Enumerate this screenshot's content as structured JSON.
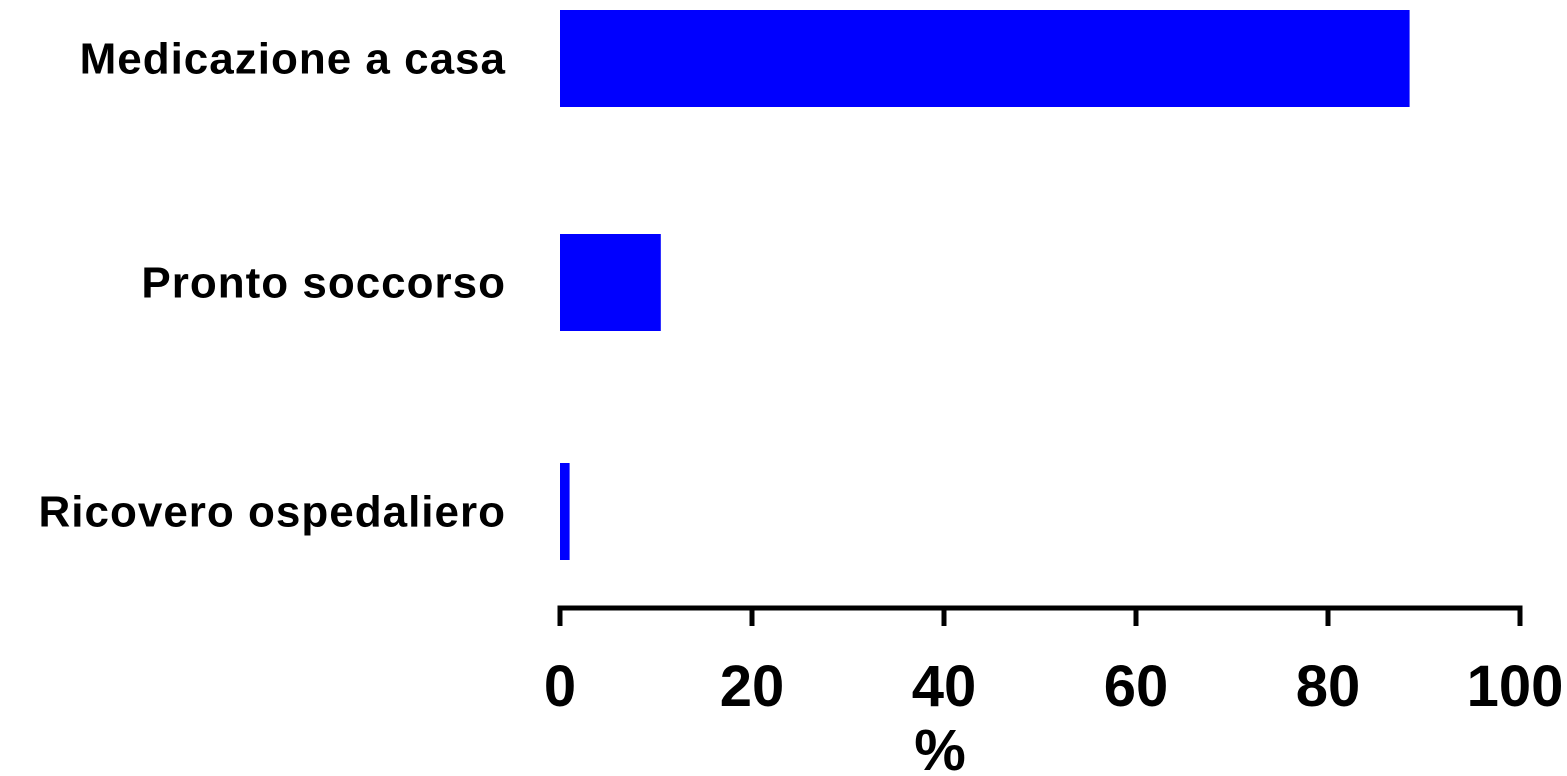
{
  "chart_data": {
    "type": "bar",
    "orientation": "horizontal",
    "categories": [
      "Medicazione a casa",
      "Pronto soccorso",
      "Ricovero ospedaliero"
    ],
    "values": [
      88.5,
      10.5,
      1.0
    ],
    "xlabel": "%",
    "xlim": [
      0,
      100
    ],
    "xticks": [
      0,
      20,
      40,
      60,
      80,
      100
    ],
    "xtick_labels": [
      "0",
      "20",
      "40",
      "60",
      "80",
      "100"
    ],
    "grid": false,
    "colors": {
      "bar": "#0000ff",
      "axis": "#000000"
    }
  }
}
